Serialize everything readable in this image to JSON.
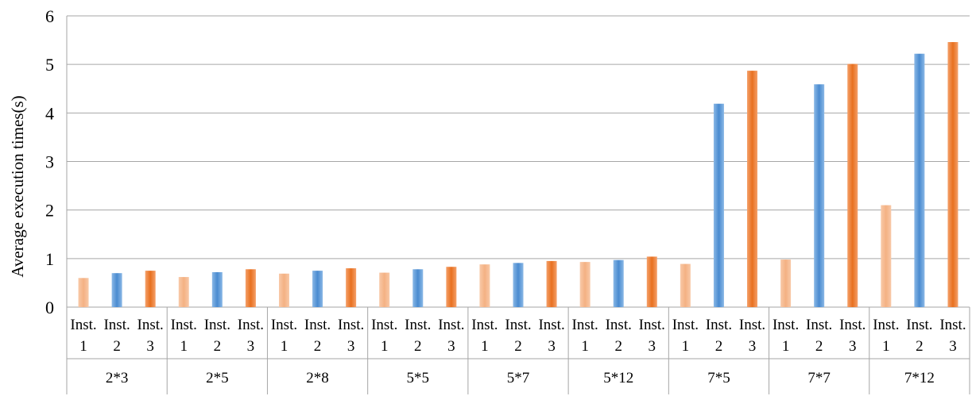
{
  "chart_data": {
    "type": "bar",
    "ylabel": "Average execution times(s)",
    "ylim": [
      0,
      6
    ],
    "yticks": [
      0,
      1,
      2,
      3,
      4,
      5,
      6
    ],
    "grid": true,
    "legend": "none",
    "groups": [
      "2*3",
      "2*5",
      "2*8",
      "5*5",
      "5*7",
      "5*12",
      "7*5",
      "7*7",
      "7*12"
    ],
    "sub_categories": [
      {
        "line1": "Inst.",
        "line2": "1"
      },
      {
        "line1": "Inst.",
        "line2": "2"
      },
      {
        "line1": "Inst.",
        "line2": "3"
      }
    ],
    "series_colors": [
      "#f4b183",
      "#5b9bd5",
      "#ed7d31"
    ],
    "values": [
      [
        0.6,
        0.7,
        0.75
      ],
      [
        0.62,
        0.72,
        0.78
      ],
      [
        0.69,
        0.75,
        0.8
      ],
      [
        0.71,
        0.78,
        0.83
      ],
      [
        0.88,
        0.91,
        0.95
      ],
      [
        0.93,
        0.97,
        1.04
      ],
      [
        0.89,
        4.19,
        4.87
      ],
      [
        0.98,
        4.59,
        5.01
      ],
      [
        2.1,
        5.22,
        5.46
      ]
    ]
  }
}
